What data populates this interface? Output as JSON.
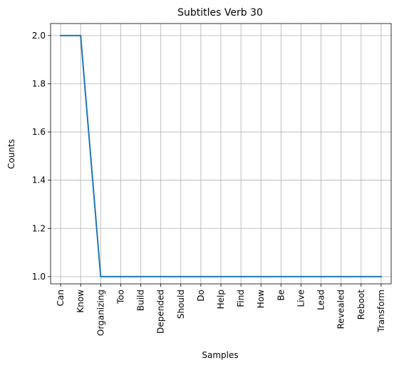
{
  "chart_data": {
    "type": "line",
    "title": "Subtitles Verb 30",
    "xlabel": "Samples",
    "ylabel": "Counts",
    "categories": [
      "Can",
      "Know",
      "Organizing",
      "Too",
      "Build",
      "Depended",
      "Should",
      "Do",
      "Help",
      "Find",
      "How",
      "Be",
      "Live",
      "Lead",
      "Revealed",
      "Reboot",
      "Transform"
    ],
    "series": [
      {
        "values": [
          2,
          2,
          1,
          1,
          1,
          1,
          1,
          1,
          1,
          1,
          1,
          1,
          1,
          1,
          1,
          1,
          1
        ]
      }
    ],
    "ylim": [
      0.97,
      2.05
    ],
    "yticks": [
      "1.0",
      "1.2",
      "1.4",
      "1.6",
      "1.8",
      "2.0"
    ],
    "grid": true,
    "line_color": "#1f77b4"
  }
}
